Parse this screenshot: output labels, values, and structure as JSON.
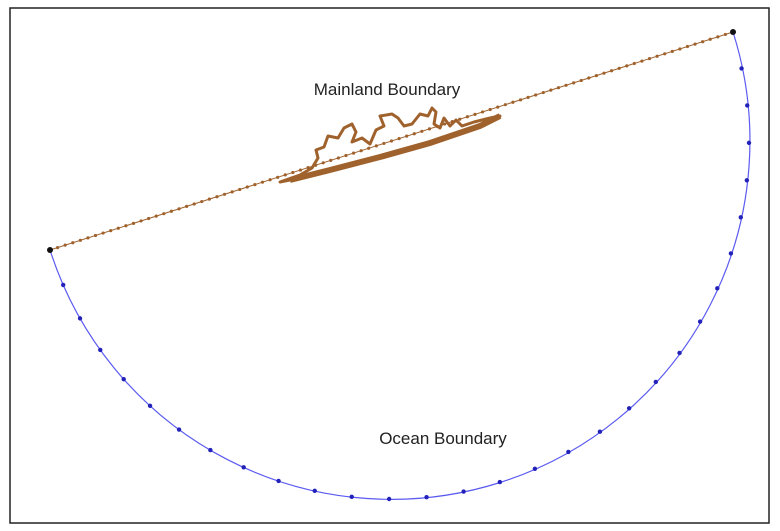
{
  "labels": {
    "mainland": "Mainland Boundary",
    "ocean": "Ocean Boundary"
  }
}
